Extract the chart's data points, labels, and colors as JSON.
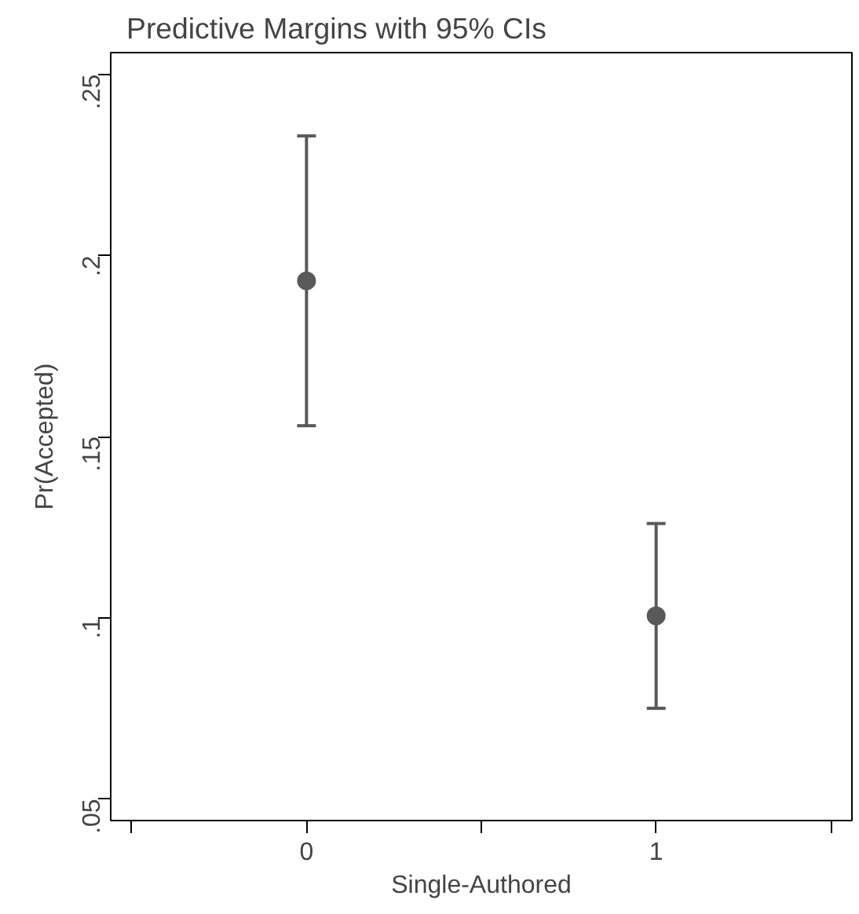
{
  "chart_data": {
    "type": "scatter",
    "title": "Predictive Margins with 95% CIs",
    "xlabel": "Single-Authored",
    "ylabel": "Pr(Accepted)",
    "x": [
      0,
      1
    ],
    "series": [
      {
        "color": "#595959",
        "values": [
          0.193,
          0.1005
        ],
        "errors": [
          [
            0.153,
            0.233
          ],
          [
            0.075,
            0.126
          ]
        ]
      }
    ],
    "marker": "circle",
    "grid": false,
    "xlim": [
      -0.56,
      1.56
    ],
    "xticks": [
      {
        "value": -0.5,
        "label": null
      },
      0,
      {
        "value": 0.5,
        "label": null
      },
      1,
      {
        "value": 1.5,
        "label": null
      }
    ],
    "ylim": [
      0.044,
      0.256
    ],
    "yticks": [
      {
        "value": 0.05,
        "label": ".05"
      },
      {
        "value": 0.1,
        "label": ".1"
      },
      {
        "value": 0.15,
        "label": ".15"
      },
      {
        "value": 0.2,
        "label": ".2"
      },
      {
        "value": 0.25,
        "label": ".25"
      }
    ]
  }
}
